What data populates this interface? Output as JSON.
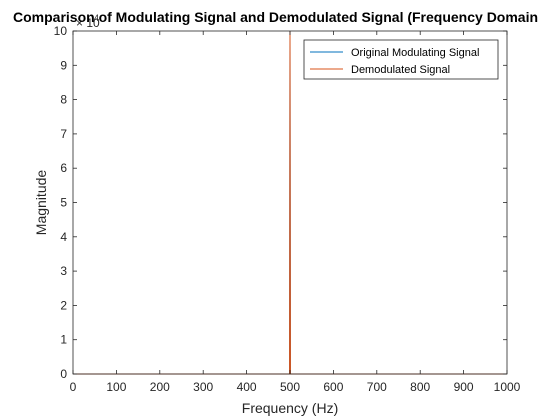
{
  "chart_data": {
    "type": "line",
    "title": "Comparison of Modulating Signal and Demodulated Signal (Frequency Domain",
    "xlabel": "Frequency (Hz)",
    "ylabel": "Magnitude",
    "xlim": [
      0,
      1000
    ],
    "ylim": [
      0,
      10
    ],
    "y_exponent_label": "× 10",
    "y_exponent_power": "4",
    "xticks": [
      0,
      100,
      200,
      300,
      400,
      500,
      600,
      700,
      800,
      900,
      1000
    ],
    "yticks": [
      0,
      1,
      2,
      3,
      4,
      5,
      6,
      7,
      8,
      9,
      10
    ],
    "grid": false,
    "legend_position": "top-right",
    "series": [
      {
        "name": "Original Modulating Signal",
        "color": "#0072BD",
        "x": [
          0,
          498,
          499,
          500,
          501,
          502,
          1000
        ],
        "y": [
          0,
          0,
          0,
          10,
          0,
          0,
          0
        ]
      },
      {
        "name": "Demodulated Signal",
        "color": "#D95319",
        "x": [
          0,
          498,
          499,
          500,
          501,
          502,
          1000
        ],
        "y": [
          0,
          0,
          0,
          10,
          0,
          0,
          0
        ]
      }
    ]
  }
}
